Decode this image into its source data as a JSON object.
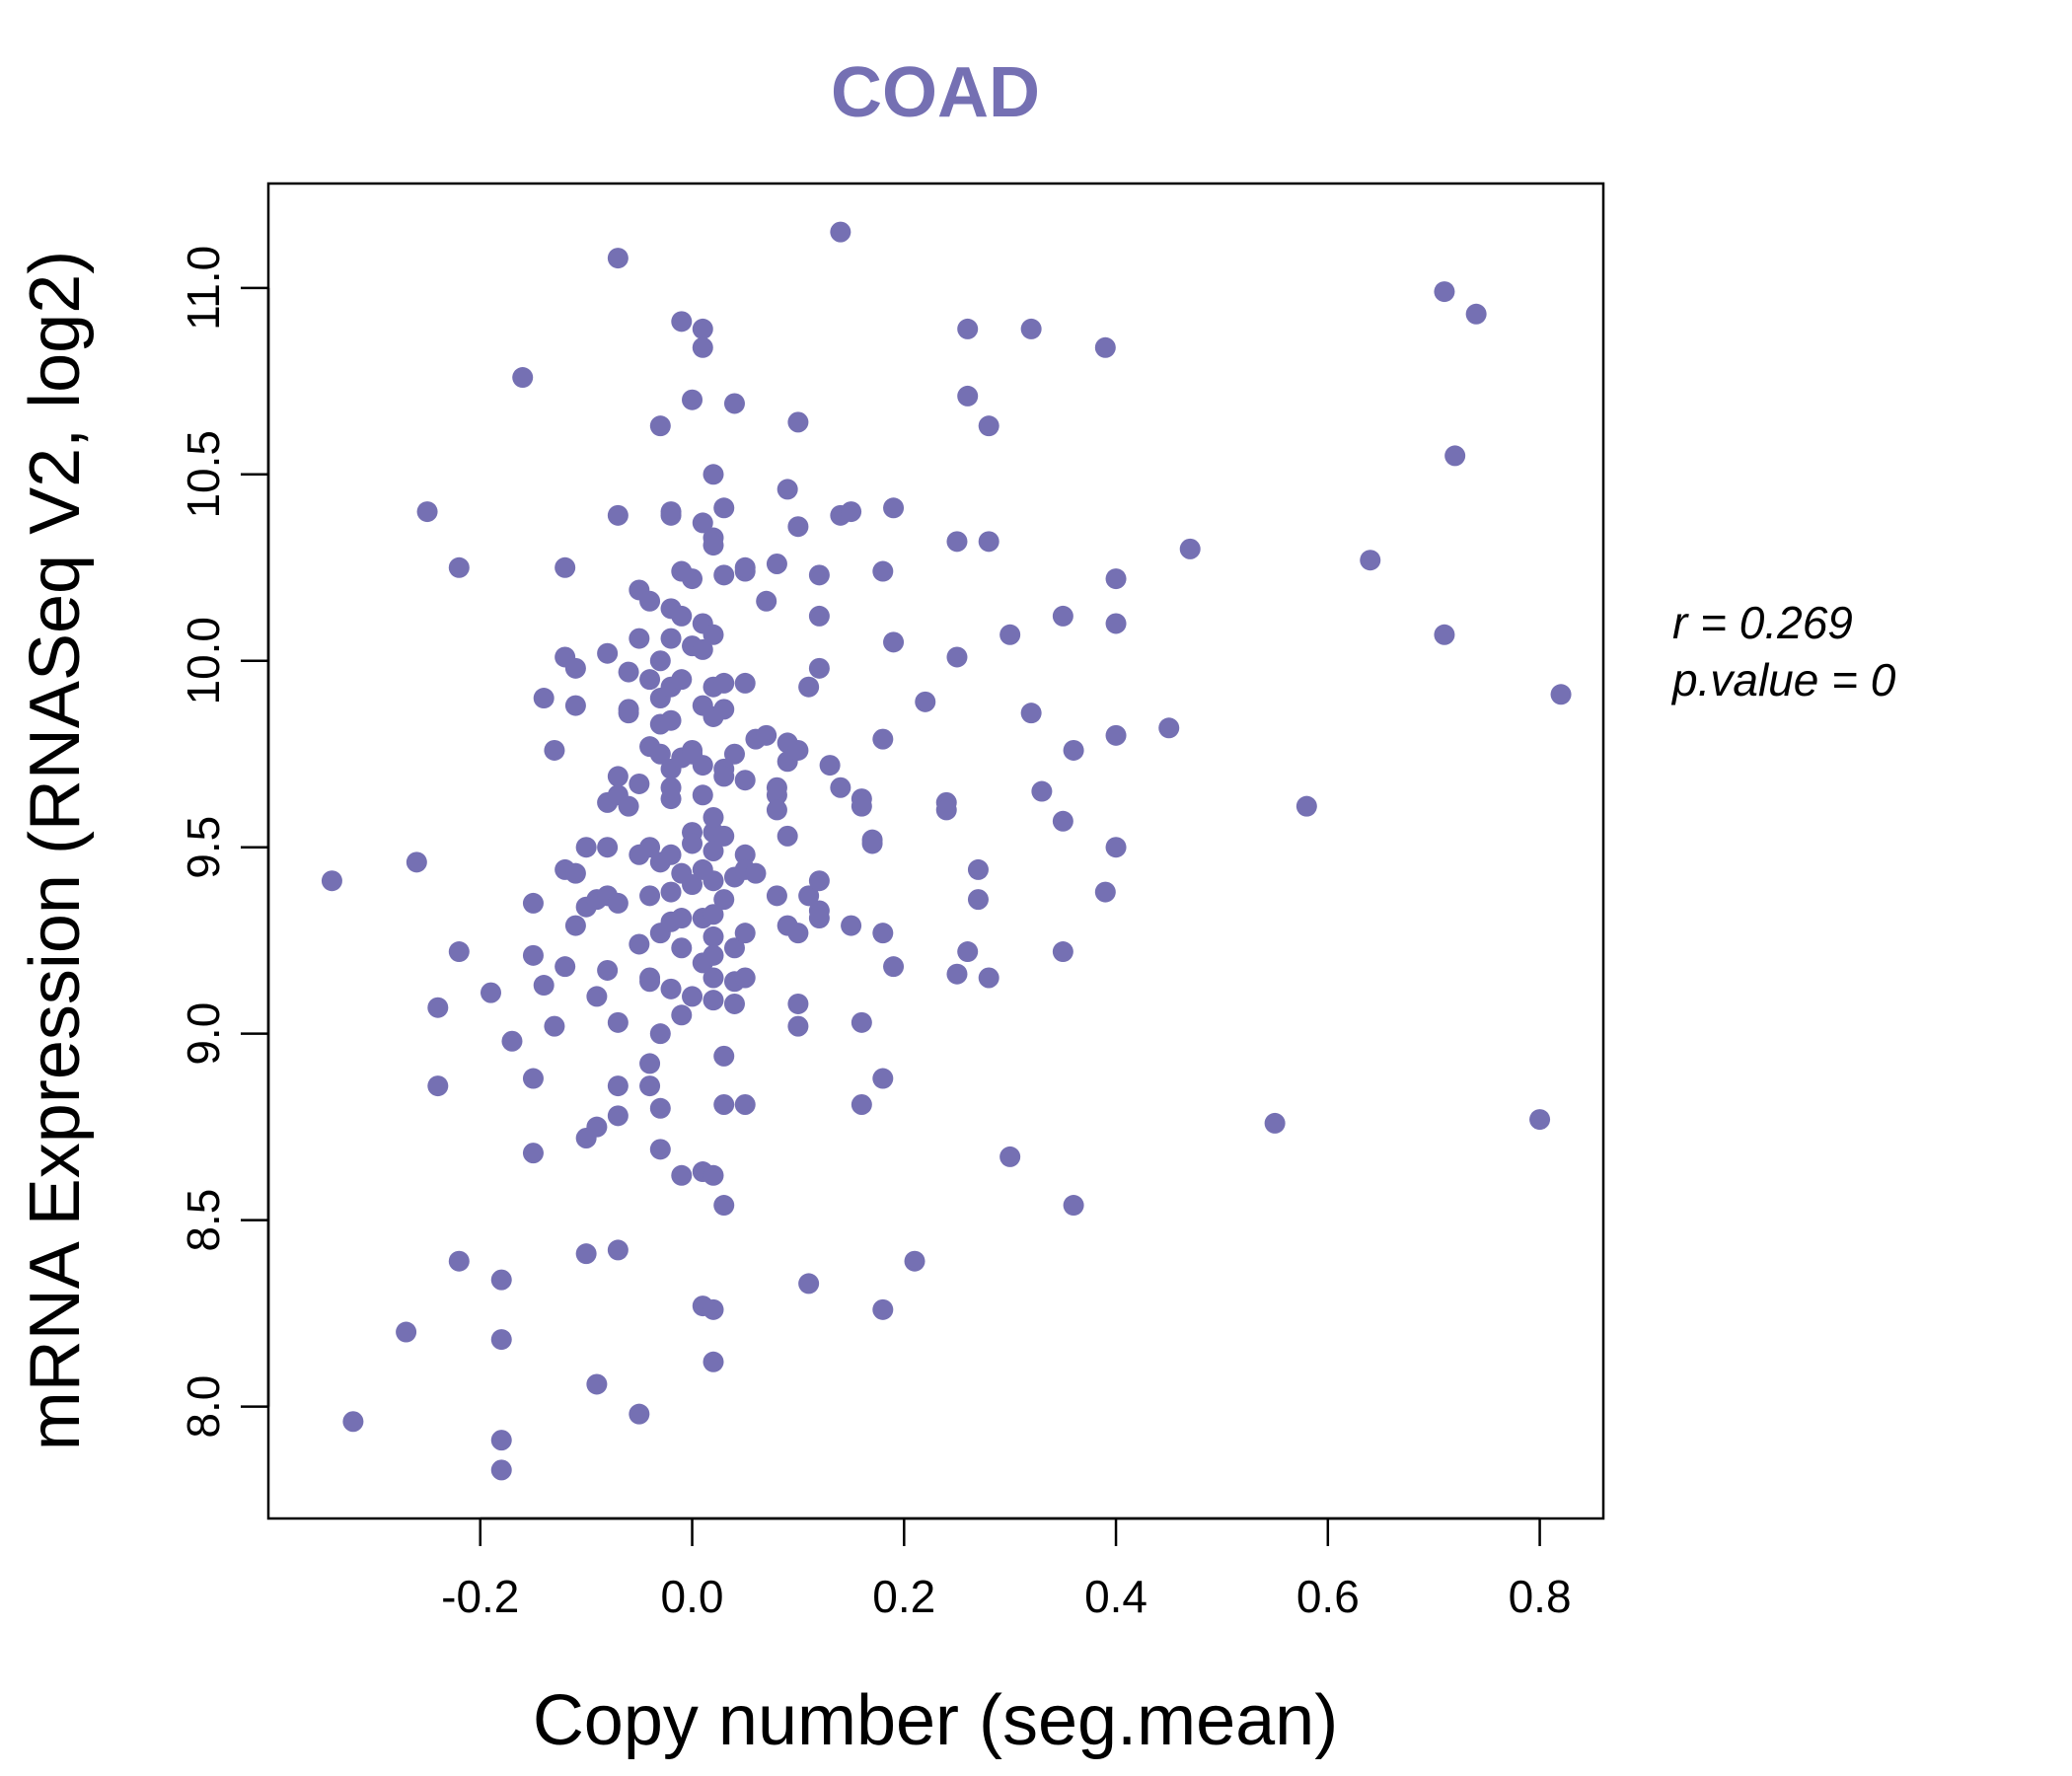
{
  "chart_data": {
    "type": "scatter",
    "title": "COAD",
    "xlabel": "Copy number (seg.mean)",
    "ylabel": "mRNA Expression (RNASeq V2, log2)",
    "xlim": [
      -0.4,
      0.86
    ],
    "ylim": [
      7.7,
      11.28
    ],
    "xticks": [
      -0.2,
      0.0,
      0.2,
      0.4,
      0.6,
      0.8
    ],
    "xtick_labels": [
      "-0.2",
      "0.0",
      "0.2",
      "0.4",
      "0.6",
      "0.8"
    ],
    "yticks": [
      8.0,
      8.5,
      9.0,
      9.5,
      10.0,
      10.5,
      11.0
    ],
    "ytick_labels": [
      "8.0",
      "8.5",
      "9.0",
      "9.5",
      "10.0",
      "10.5",
      "11.0"
    ],
    "grid": false,
    "point_color": "#7570b3",
    "stats": {
      "r_label": "r = 0.269",
      "p_label": "p.value = 0"
    },
    "points": [
      [
        -0.34,
        9.41
      ],
      [
        -0.32,
        7.96
      ],
      [
        -0.27,
        8.2
      ],
      [
        -0.26,
        9.46
      ],
      [
        -0.25,
        10.4
      ],
      [
        -0.24,
        9.07
      ],
      [
        -0.24,
        8.86
      ],
      [
        -0.22,
        9.22
      ],
      [
        -0.22,
        8.39
      ],
      [
        -0.22,
        10.25
      ],
      [
        -0.19,
        9.11
      ],
      [
        -0.18,
        8.34
      ],
      [
        -0.18,
        8.18
      ],
      [
        -0.18,
        7.91
      ],
      [
        -0.18,
        7.83
      ],
      [
        -0.17,
        8.98
      ],
      [
        -0.16,
        10.76
      ],
      [
        -0.15,
        9.35
      ],
      [
        -0.15,
        9.21
      ],
      [
        -0.15,
        8.88
      ],
      [
        -0.15,
        8.68
      ],
      [
        -0.14,
        9.13
      ],
      [
        -0.14,
        9.9
      ],
      [
        -0.13,
        9.76
      ],
      [
        -0.13,
        9.02
      ],
      [
        -0.12,
        10.01
      ],
      [
        -0.12,
        9.44
      ],
      [
        -0.12,
        9.18
      ],
      [
        -0.12,
        10.25
      ],
      [
        -0.11,
        9.43
      ],
      [
        -0.11,
        9.98
      ],
      [
        -0.11,
        9.88
      ],
      [
        -0.11,
        9.29
      ],
      [
        -0.1,
        9.5
      ],
      [
        -0.1,
        9.34
      ],
      [
        -0.1,
        8.72
      ],
      [
        -0.1,
        8.41
      ],
      [
        -0.09,
        9.36
      ],
      [
        -0.09,
        9.1
      ],
      [
        -0.09,
        8.75
      ],
      [
        -0.09,
        8.06
      ],
      [
        -0.08,
        10.02
      ],
      [
        -0.08,
        9.62
      ],
      [
        -0.08,
        9.5
      ],
      [
        -0.08,
        9.37
      ],
      [
        -0.08,
        9.17
      ],
      [
        -0.07,
        10.39
      ],
      [
        -0.07,
        9.69
      ],
      [
        -0.07,
        9.64
      ],
      [
        -0.07,
        8.86
      ],
      [
        -0.07,
        8.78
      ],
      [
        -0.07,
        9.35
      ],
      [
        -0.07,
        9.03
      ],
      [
        -0.07,
        11.08
      ],
      [
        -0.07,
        8.42
      ],
      [
        -0.06,
        9.97
      ],
      [
        -0.06,
        9.86
      ],
      [
        -0.06,
        9.61
      ],
      [
        -0.06,
        9.87
      ],
      [
        -0.05,
        10.19
      ],
      [
        -0.05,
        10.06
      ],
      [
        -0.05,
        9.67
      ],
      [
        -0.05,
        9.48
      ],
      [
        -0.05,
        9.24
      ],
      [
        -0.05,
        7.98
      ],
      [
        -0.04,
        9.77
      ],
      [
        -0.04,
        9.37
      ],
      [
        -0.04,
        9.15
      ],
      [
        -0.04,
        8.92
      ],
      [
        -0.04,
        9.95
      ],
      [
        -0.04,
        10.16
      ],
      [
        -0.04,
        9.5
      ],
      [
        -0.04,
        9.14
      ],
      [
        -0.04,
        8.86
      ],
      [
        -0.03,
        10.0
      ],
      [
        -0.03,
        9.83
      ],
      [
        -0.03,
        9.46
      ],
      [
        -0.03,
        9.27
      ],
      [
        -0.03,
        9.0
      ],
      [
        -0.03,
        8.8
      ],
      [
        -0.03,
        8.69
      ],
      [
        -0.03,
        10.63
      ],
      [
        -0.03,
        9.9
      ],
      [
        -0.03,
        9.75
      ],
      [
        -0.02,
        10.4
      ],
      [
        -0.02,
        10.39
      ],
      [
        -0.02,
        10.14
      ],
      [
        -0.02,
        9.93
      ],
      [
        -0.02,
        9.84
      ],
      [
        -0.02,
        9.71
      ],
      [
        -0.02,
        9.63
      ],
      [
        -0.02,
        9.48
      ],
      [
        -0.02,
        9.38
      ],
      [
        -0.02,
        9.3
      ],
      [
        -0.02,
        9.12
      ],
      [
        -0.02,
        9.66
      ],
      [
        -0.02,
        10.06
      ],
      [
        -0.01,
        10.24
      ],
      [
        -0.01,
        10.12
      ],
      [
        -0.01,
        9.95
      ],
      [
        -0.01,
        9.74
      ],
      [
        -0.01,
        9.43
      ],
      [
        -0.01,
        9.31
      ],
      [
        -0.01,
        9.23
      ],
      [
        -0.01,
        9.05
      ],
      [
        -0.01,
        8.62
      ],
      [
        -0.01,
        10.91
      ],
      [
        0.0,
        10.7
      ],
      [
        0.0,
        10.22
      ],
      [
        0.0,
        9.76
      ],
      [
        0.0,
        9.54
      ],
      [
        0.0,
        9.51
      ],
      [
        0.0,
        9.4
      ],
      [
        0.0,
        9.1
      ],
      [
        0.0,
        10.04
      ],
      [
        0.0,
        9.75
      ],
      [
        0.01,
        10.37
      ],
      [
        0.01,
        10.1
      ],
      [
        0.01,
        10.03
      ],
      [
        0.01,
        9.88
      ],
      [
        0.01,
        9.72
      ],
      [
        0.01,
        9.44
      ],
      [
        0.01,
        9.31
      ],
      [
        0.01,
        9.19
      ],
      [
        0.01,
        8.63
      ],
      [
        0.01,
        8.27
      ],
      [
        0.01,
        10.89
      ],
      [
        0.01,
        10.84
      ],
      [
        0.01,
        9.64
      ],
      [
        0.02,
        10.33
      ],
      [
        0.02,
        10.07
      ],
      [
        0.02,
        9.93
      ],
      [
        0.02,
        9.85
      ],
      [
        0.02,
        9.54
      ],
      [
        0.02,
        9.49
      ],
      [
        0.02,
        9.41
      ],
      [
        0.02,
        9.32
      ],
      [
        0.02,
        9.15
      ],
      [
        0.02,
        9.09
      ],
      [
        0.02,
        8.62
      ],
      [
        0.02,
        8.26
      ],
      [
        0.02,
        10.5
      ],
      [
        0.02,
        9.58
      ],
      [
        0.02,
        9.26
      ],
      [
        0.02,
        9.21
      ],
      [
        0.02,
        8.12
      ],
      [
        0.02,
        10.31
      ],
      [
        0.03,
        10.23
      ],
      [
        0.03,
        9.94
      ],
      [
        0.03,
        9.87
      ],
      [
        0.03,
        9.71
      ],
      [
        0.03,
        9.53
      ],
      [
        0.03,
        9.36
      ],
      [
        0.03,
        8.94
      ],
      [
        0.03,
        8.81
      ],
      [
        0.03,
        8.54
      ],
      [
        0.03,
        10.41
      ],
      [
        0.03,
        9.69
      ],
      [
        0.04,
        9.75
      ],
      [
        0.04,
        9.42
      ],
      [
        0.04,
        9.23
      ],
      [
        0.04,
        9.14
      ],
      [
        0.04,
        9.08
      ],
      [
        0.04,
        10.69
      ],
      [
        0.05,
        10.24
      ],
      [
        0.05,
        9.94
      ],
      [
        0.05,
        9.48
      ],
      [
        0.05,
        9.44
      ],
      [
        0.05,
        9.27
      ],
      [
        0.05,
        8.81
      ],
      [
        0.05,
        10.25
      ],
      [
        0.05,
        9.68
      ],
      [
        0.05,
        9.15
      ],
      [
        0.06,
        9.79
      ],
      [
        0.06,
        9.43
      ],
      [
        0.07,
        10.16
      ],
      [
        0.07,
        9.8
      ],
      [
        0.08,
        10.26
      ],
      [
        0.08,
        9.64
      ],
      [
        0.08,
        9.6
      ],
      [
        0.08,
        9.37
      ],
      [
        0.08,
        9.66
      ],
      [
        0.09,
        9.73
      ],
      [
        0.09,
        9.53
      ],
      [
        0.09,
        9.29
      ],
      [
        0.09,
        9.78
      ],
      [
        0.09,
        10.46
      ],
      [
        0.1,
        10.36
      ],
      [
        0.1,
        9.76
      ],
      [
        0.1,
        9.27
      ],
      [
        0.1,
        9.08
      ],
      [
        0.1,
        9.02
      ],
      [
        0.1,
        10.64
      ],
      [
        0.11,
        9.93
      ],
      [
        0.11,
        9.37
      ],
      [
        0.11,
        8.33
      ],
      [
        0.12,
        10.12
      ],
      [
        0.12,
        9.33
      ],
      [
        0.12,
        10.23
      ],
      [
        0.12,
        9.98
      ],
      [
        0.12,
        9.41
      ],
      [
        0.12,
        9.31
      ],
      [
        0.13,
        9.72
      ],
      [
        0.14,
        10.39
      ],
      [
        0.14,
        9.66
      ],
      [
        0.14,
        11.15
      ],
      [
        0.15,
        10.4
      ],
      [
        0.15,
        9.29
      ],
      [
        0.16,
        9.63
      ],
      [
        0.16,
        9.61
      ],
      [
        0.16,
        9.03
      ],
      [
        0.16,
        8.81
      ],
      [
        0.17,
        9.52
      ],
      [
        0.17,
        9.51
      ],
      [
        0.18,
        10.24
      ],
      [
        0.18,
        9.79
      ],
      [
        0.18,
        9.27
      ],
      [
        0.18,
        8.88
      ],
      [
        0.18,
        8.26
      ],
      [
        0.19,
        10.41
      ],
      [
        0.19,
        10.05
      ],
      [
        0.19,
        9.18
      ],
      [
        0.21,
        8.39
      ],
      [
        0.22,
        9.89
      ],
      [
        0.24,
        9.62
      ],
      [
        0.24,
        9.6
      ],
      [
        0.25,
        9.16
      ],
      [
        0.25,
        10.32
      ],
      [
        0.25,
        10.01
      ],
      [
        0.26,
        9.22
      ],
      [
        0.26,
        10.89
      ],
      [
        0.26,
        10.71
      ],
      [
        0.27,
        9.44
      ],
      [
        0.27,
        9.36
      ],
      [
        0.28,
        10.63
      ],
      [
        0.28,
        10.32
      ],
      [
        0.28,
        9.15
      ],
      [
        0.3,
        10.07
      ],
      [
        0.3,
        8.67
      ],
      [
        0.32,
        10.89
      ],
      [
        0.32,
        9.86
      ],
      [
        0.33,
        9.65
      ],
      [
        0.35,
        10.12
      ],
      [
        0.35,
        9.57
      ],
      [
        0.35,
        9.22
      ],
      [
        0.36,
        9.76
      ],
      [
        0.36,
        8.54
      ],
      [
        0.39,
        9.38
      ],
      [
        0.39,
        10.84
      ],
      [
        0.4,
        10.22
      ],
      [
        0.4,
        9.5
      ],
      [
        0.4,
        10.1
      ],
      [
        0.4,
        9.8
      ],
      [
        0.45,
        9.82
      ],
      [
        0.47,
        10.3
      ],
      [
        0.55,
        8.76
      ],
      [
        0.58,
        9.61
      ],
      [
        0.64,
        10.27
      ],
      [
        0.71,
        10.99
      ],
      [
        0.71,
        10.07
      ],
      [
        0.72,
        10.55
      ],
      [
        0.74,
        10.93
      ],
      [
        0.8,
        8.77
      ],
      [
        0.82,
        9.91
      ]
    ]
  }
}
